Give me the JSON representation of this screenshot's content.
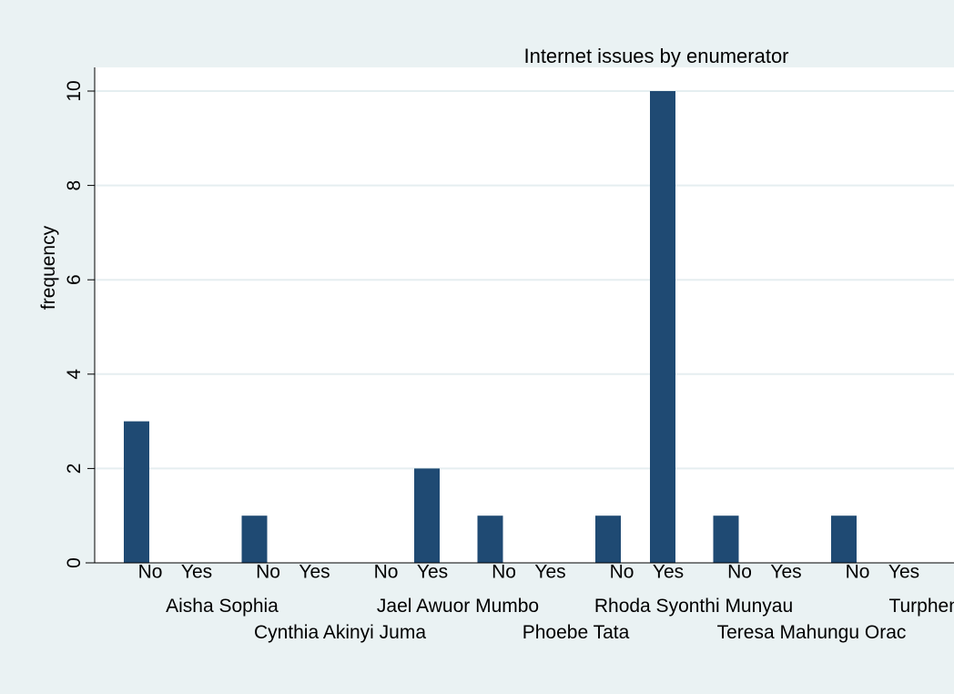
{
  "chart_data": {
    "type": "bar",
    "title": "Internet issues by enumerator",
    "ylabel": "frequency",
    "xlabel": "",
    "ylim": [
      0,
      10
    ],
    "yticks": [
      0,
      2,
      4,
      6,
      8,
      10
    ],
    "grid": true,
    "legend": "none",
    "bar_color": "#1f4a73",
    "background_color": "#eaf2f3",
    "plot_background_color": "#ffffff",
    "subcategories": [
      "No",
      "Yes"
    ],
    "groups": [
      {
        "label": "Aisha Sophia",
        "values": [
          3,
          0
        ]
      },
      {
        "label": "Cynthia Akinyi Juma",
        "values": [
          1,
          0
        ]
      },
      {
        "label": "Jael Awuor Mumbo",
        "values": [
          0,
          2
        ]
      },
      {
        "label": "Phoebe Tata",
        "values": [
          1,
          0
        ]
      },
      {
        "label": "Rhoda Syonthi Munyau",
        "values": [
          1,
          10
        ]
      },
      {
        "label": "Teresa Mahungu Orac",
        "values": [
          1,
          0
        ]
      },
      {
        "label": "Turphena",
        "values": [
          1,
          0
        ]
      }
    ]
  }
}
